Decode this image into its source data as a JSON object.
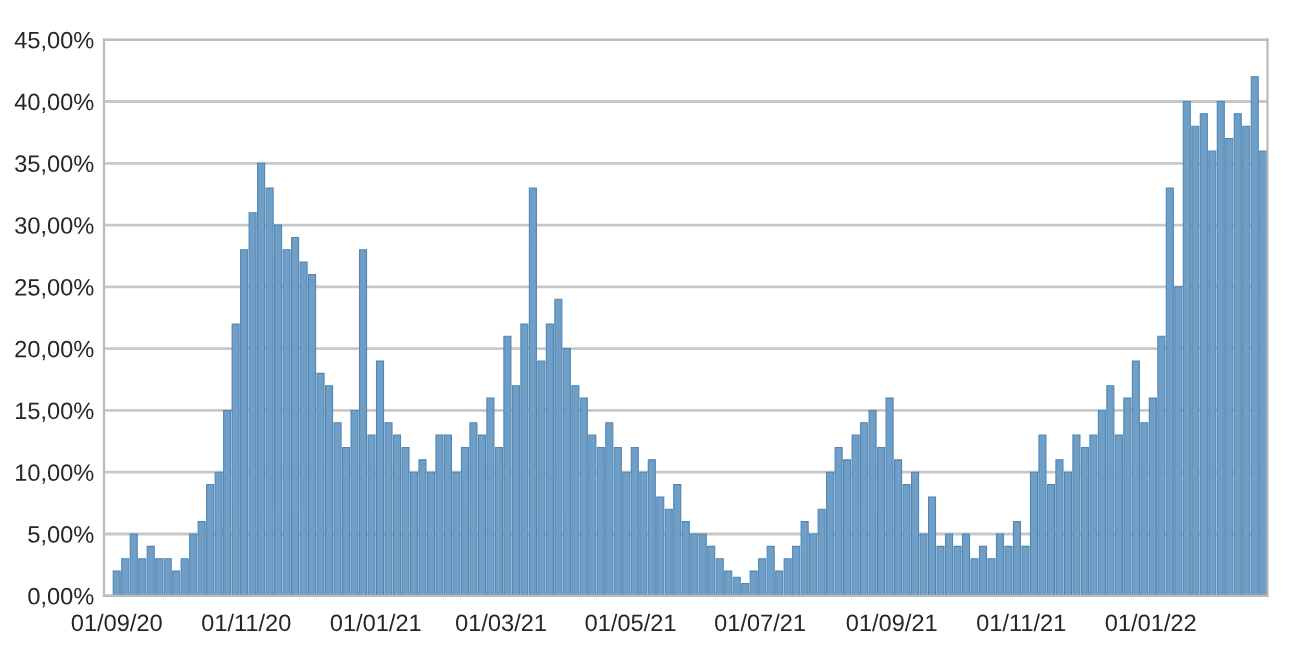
{
  "chart_data": {
    "type": "bar",
    "color": "#6f9fc6",
    "x": [
      "2020-09-01",
      "2020-09-05",
      "2020-09-09",
      "2020-09-13",
      "2020-09-17",
      "2020-09-21",
      "2020-09-25",
      "2020-09-29",
      "2020-10-03",
      "2020-10-07",
      "2020-10-11",
      "2020-10-15",
      "2020-10-19",
      "2020-10-23",
      "2020-10-27",
      "2020-10-31",
      "2020-11-04",
      "2020-11-08",
      "2020-11-12",
      "2020-11-16",
      "2020-11-20",
      "2020-11-24",
      "2020-11-28",
      "2020-12-02",
      "2020-12-06",
      "2020-12-10",
      "2020-12-14",
      "2020-12-18",
      "2020-12-22",
      "2020-12-26",
      "2020-12-30",
      "2021-01-03",
      "2021-01-07",
      "2021-01-11",
      "2021-01-15",
      "2021-01-19",
      "2021-01-23",
      "2021-01-27",
      "2021-01-31",
      "2021-02-04",
      "2021-02-08",
      "2021-02-12",
      "2021-02-16",
      "2021-02-20",
      "2021-02-24",
      "2021-02-28",
      "2021-03-04",
      "2021-03-08",
      "2021-03-12",
      "2021-03-16",
      "2021-03-20",
      "2021-03-24",
      "2021-03-28",
      "2021-04-01",
      "2021-04-05",
      "2021-04-09",
      "2021-04-13",
      "2021-04-17",
      "2021-04-21",
      "2021-04-25",
      "2021-04-29",
      "2021-05-03",
      "2021-05-07",
      "2021-05-11",
      "2021-05-15",
      "2021-05-19",
      "2021-05-23",
      "2021-05-27",
      "2021-05-31",
      "2021-06-04",
      "2021-06-08",
      "2021-06-12",
      "2021-06-16",
      "2021-06-20",
      "2021-06-24",
      "2021-06-28",
      "2021-07-02",
      "2021-07-06",
      "2021-07-10",
      "2021-07-14",
      "2021-07-18",
      "2021-07-22",
      "2021-07-26",
      "2021-07-30",
      "2021-08-03",
      "2021-08-07",
      "2021-08-11",
      "2021-08-15",
      "2021-08-19",
      "2021-08-23",
      "2021-08-27",
      "2021-08-31",
      "2021-09-04",
      "2021-09-08",
      "2021-09-12",
      "2021-09-16",
      "2021-09-20",
      "2021-09-24",
      "2021-09-28",
      "2021-10-02",
      "2021-10-06",
      "2021-10-10",
      "2021-10-14",
      "2021-10-18",
      "2021-10-22",
      "2021-10-26",
      "2021-10-30",
      "2021-11-03",
      "2021-11-07",
      "2021-11-11",
      "2021-11-15",
      "2021-11-19",
      "2021-11-23",
      "2021-11-27",
      "2021-12-01",
      "2021-12-05",
      "2021-12-09",
      "2021-12-13",
      "2021-12-17",
      "2021-12-21",
      "2021-12-25",
      "2021-12-29",
      "2022-01-02",
      "2022-01-06",
      "2022-01-10",
      "2022-01-14",
      "2022-01-18",
      "2022-01-22",
      "2022-01-26",
      "2022-01-30",
      "2022-02-03",
      "2022-02-07",
      "2022-02-11",
      "2022-02-15",
      "2022-02-19",
      "2022-02-23"
    ],
    "values": [
      2,
      3,
      5,
      3,
      4,
      3,
      3,
      2,
      3,
      5,
      6,
      9,
      10,
      15,
      22,
      28,
      31,
      35,
      33,
      30,
      28,
      29,
      27,
      26,
      18,
      17,
      14,
      12,
      15,
      28,
      13,
      19,
      14,
      13,
      12,
      10,
      11,
      10,
      13,
      13,
      10,
      12,
      14,
      13,
      16,
      12,
      21,
      17,
      22,
      33,
      19,
      22,
      24,
      20,
      17,
      16,
      13,
      12,
      14,
      12,
      10,
      12,
      10,
      11,
      8,
      7,
      9,
      6,
      5,
      5,
      4,
      3,
      2,
      1.5,
      1,
      2,
      3,
      4,
      2,
      3,
      4,
      6,
      5,
      7,
      10,
      12,
      11,
      13,
      14,
      15,
      12,
      16,
      11,
      9,
      10,
      5,
      8,
      4,
      5,
      4,
      5,
      3,
      4,
      3,
      5,
      4,
      6,
      4,
      10,
      13,
      9,
      11,
      10,
      13,
      12,
      13,
      15,
      17,
      13,
      16,
      19,
      14,
      16,
      21,
      33,
      25,
      40,
      38,
      39,
      36,
      40,
      37,
      39,
      38,
      42,
      36
    ],
    "xlim": [
      "2020-08-26",
      "2022-02-25"
    ],
    "xticks": [
      {
        "value": "2020-09-01",
        "label": "01/09/20"
      },
      {
        "value": "2020-11-01",
        "label": "01/11/20"
      },
      {
        "value": "2021-01-01",
        "label": "01/01/21"
      },
      {
        "value": "2021-03-01",
        "label": "01/03/21"
      },
      {
        "value": "2021-05-01",
        "label": "01/05/21"
      },
      {
        "value": "2021-07-01",
        "label": "01/07/21"
      },
      {
        "value": "2021-09-01",
        "label": "01/09/21"
      },
      {
        "value": "2021-11-01",
        "label": "01/11/21"
      },
      {
        "value": "2022-01-01",
        "label": "01/01/22"
      }
    ],
    "ylim": [
      0,
      45
    ],
    "yticks": [
      {
        "value": 0,
        "label": "0,00%"
      },
      {
        "value": 5,
        "label": "5,00%"
      },
      {
        "value": 10,
        "label": "10,00%"
      },
      {
        "value": 15,
        "label": "15,00%"
      },
      {
        "value": 20,
        "label": "20,00%"
      },
      {
        "value": 25,
        "label": "25,00%"
      },
      {
        "value": 30,
        "label": "30,00%"
      },
      {
        "value": 35,
        "label": "35,00%"
      },
      {
        "value": 40,
        "label": "40,00%"
      },
      {
        "value": 45,
        "label": "45,00%"
      }
    ],
    "grid": "y",
    "legend": false
  }
}
